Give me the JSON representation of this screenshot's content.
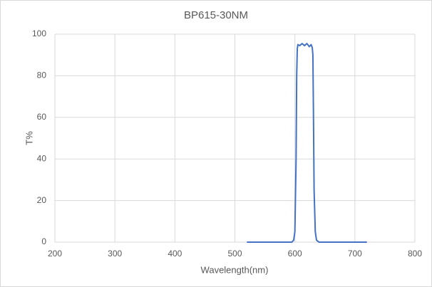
{
  "chart_data": {
    "type": "line",
    "title": "BP615-30NM",
    "x_label": "Wavelength(nm)",
    "y_label": "T%",
    "x": [
      520,
      595,
      598,
      600,
      602,
      603,
      604,
      605,
      608,
      612,
      616,
      620,
      624,
      627,
      629,
      630,
      631,
      632,
      634,
      636,
      640,
      720
    ],
    "series": [
      {
        "name": "BP615-30NM",
        "color": "#4472c4",
        "values": [
          0,
          0,
          1,
          5,
          40,
          80,
          93,
          95,
          94.5,
          95.5,
          94.5,
          95.5,
          94,
          95,
          93.5,
          90,
          60,
          25,
          5,
          1,
          0,
          0
        ]
      }
    ],
    "xlim": [
      200,
      800
    ],
    "xticks": [
      200,
      300,
      400,
      500,
      600,
      700,
      800
    ],
    "ylim": [
      0,
      100
    ],
    "yticks": [
      0,
      20,
      40,
      60,
      80,
      100
    ],
    "grid": true
  }
}
